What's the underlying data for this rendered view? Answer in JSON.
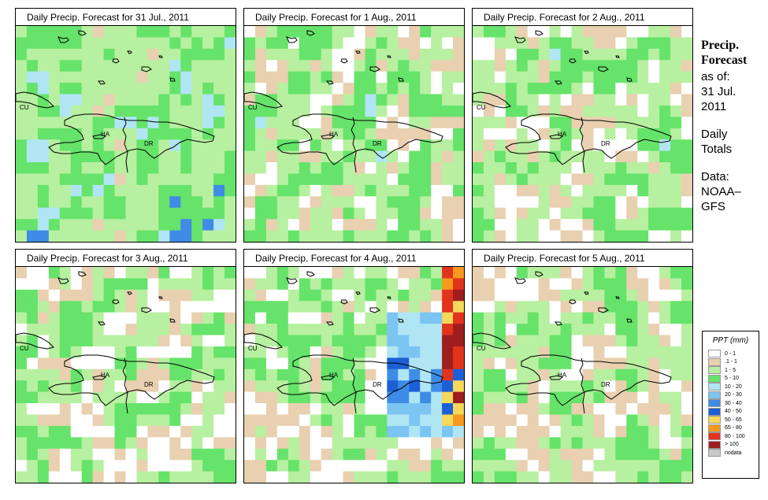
{
  "panels": [
    {
      "title": "Daily Precip. Forecast for  31 Jul., 2011",
      "scheme": "a"
    },
    {
      "title": "Daily Precip. Forecast for  1 Aug., 2011",
      "scheme": "b"
    },
    {
      "title": "Daily Precip. Forecast for  2 Aug., 2011",
      "scheme": "c"
    },
    {
      "title": "Daily Precip. Forecast for  3 Aug., 2011",
      "scheme": "d"
    },
    {
      "title": "Daily Precip. Forecast for  4 Aug., 2011",
      "scheme": "e"
    },
    {
      "title": "Daily Precip. Forecast for  5 Aug., 2011",
      "scheme": "f"
    }
  ],
  "map_labels": {
    "cuba": "CU",
    "haiti": "HA",
    "dominican_republic": "DR"
  },
  "sidebar": {
    "title": "Precip.\nForecast",
    "asof": "as of:\n31 Jul.\n2011",
    "totals": "Daily\nTotals",
    "source": "Data:\nNOAA–\nGFS"
  },
  "legend": {
    "title": "PPT (mm)",
    "items": [
      {
        "label": "0 - 1",
        "color": "#ffffff"
      },
      {
        "label": ".1 - 1",
        "color": "#e8d0b0"
      },
      {
        "label": "1 - 5",
        "color": "#b7f0a0"
      },
      {
        "label": "5 - 10",
        "color": "#66e36a"
      },
      {
        "label": "10 - 20",
        "color": "#b0e6f4"
      },
      {
        "label": "20 - 30",
        "color": "#7cc4f2"
      },
      {
        "label": "30 - 40",
        "color": "#3e8ce6"
      },
      {
        "label": "40 - 50",
        "color": "#1c5fd6"
      },
      {
        "label": "50 - 65",
        "color": "#f6d85a"
      },
      {
        "label": "65 - 80",
        "color": "#f59a1e"
      },
      {
        "label": "80 - 100",
        "color": "#e2331d"
      },
      {
        "label": "> 100",
        "color": "#9e1d1d"
      },
      {
        "label": "nodata",
        "color": "#c8c8c8"
      }
    ]
  }
}
